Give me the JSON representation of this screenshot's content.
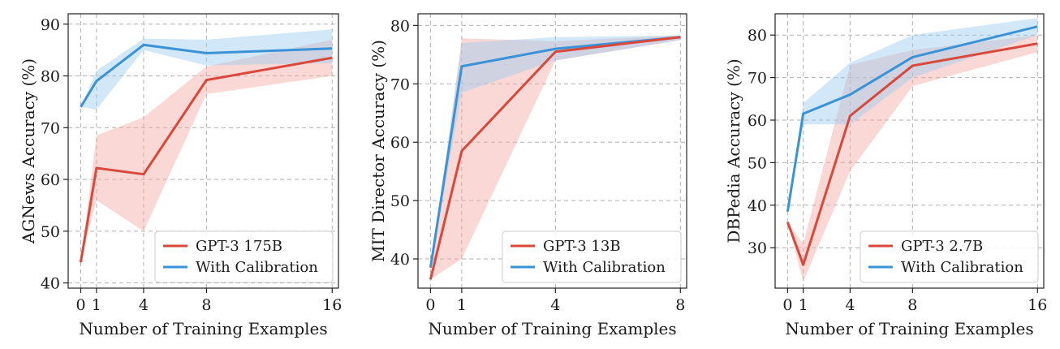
{
  "colors": {
    "baseline": "#d9483b",
    "calibrated": "#3a93d6",
    "baseline_band": "#f5a9a2",
    "calibrated_band": "#9ccbef",
    "grid": "#b0b0b0"
  },
  "chart_data": [
    {
      "type": "line",
      "title": "",
      "xlabel": "Number of Training Examples",
      "ylabel": "AGNews Accuracy (%)",
      "xlim": [
        -0.8,
        16.4
      ],
      "ylim": [
        39,
        92
      ],
      "x_ticks": [
        0,
        1,
        4,
        8,
        16
      ],
      "y_ticks": [
        40,
        50,
        60,
        70,
        80,
        90
      ],
      "grid": true,
      "legend_position": "lower-right",
      "series": [
        {
          "name": "GPT-3 175B",
          "color_key": "baseline",
          "x": [
            0,
            1,
            4,
            8,
            16
          ],
          "y": [
            44.0,
            62.2,
            61.0,
            79.2,
            83.5
          ],
          "lower": [
            44.0,
            56.0,
            50.0,
            76.5,
            80.0
          ],
          "upper": [
            44.0,
            68.5,
            72.0,
            81.8,
            87.0
          ]
        },
        {
          "name": "With Calibration",
          "color_key": "calibrated",
          "x": [
            0,
            1,
            4,
            8,
            16
          ],
          "y": [
            74.0,
            79.0,
            86.0,
            84.4,
            85.3
          ],
          "lower": [
            74.0,
            73.5,
            85.0,
            82.0,
            82.5
          ],
          "upper": [
            74.0,
            81.0,
            87.2,
            87.0,
            89.0
          ]
        }
      ]
    },
    {
      "type": "line",
      "title": "",
      "xlabel": "Number of Training Examples",
      "ylabel": "MIT Director Accuracy (%)",
      "xlim": [
        -0.4,
        8.2
      ],
      "ylim": [
        35,
        82
      ],
      "x_ticks": [
        0,
        1,
        4,
        8
      ],
      "y_ticks": [
        40,
        50,
        60,
        70,
        80
      ],
      "grid": true,
      "legend_position": "lower-right",
      "series": [
        {
          "name": "GPT-3 13B",
          "color_key": "baseline",
          "x": [
            0,
            1,
            4,
            8
          ],
          "y": [
            36.5,
            58.5,
            75.5,
            78.0
          ],
          "lower": [
            36.5,
            40.0,
            74.0,
            77.5
          ],
          "upper": [
            36.5,
            77.8,
            77.3,
            78.3
          ]
        },
        {
          "name": "With Calibration",
          "color_key": "calibrated",
          "x": [
            0,
            1,
            4,
            8
          ],
          "y": [
            38.5,
            73.0,
            76.0,
            78.0
          ],
          "lower": [
            38.5,
            68.5,
            74.0,
            77.5
          ],
          "upper": [
            38.5,
            77.0,
            78.0,
            78.3
          ]
        }
      ]
    },
    {
      "type": "line",
      "title": "",
      "xlabel": "Number of Training Examples",
      "ylabel": "DBPedia Accuracy (%)",
      "xlim": [
        -0.8,
        16.4
      ],
      "ylim": [
        20.5,
        85
      ],
      "x_ticks": [
        0,
        1,
        4,
        8,
        16
      ],
      "y_ticks": [
        30,
        40,
        50,
        60,
        70,
        80
      ],
      "grid": true,
      "legend_position": "lower-right",
      "series": [
        {
          "name": "GPT-3 2.7B",
          "color_key": "baseline",
          "x": [
            0,
            1,
            4,
            8,
            16
          ],
          "y": [
            36.0,
            26.0,
            61.0,
            72.8,
            78.0
          ],
          "lower": [
            36.0,
            22.0,
            48.0,
            68.0,
            76.0
          ],
          "upper": [
            36.0,
            31.0,
            73.0,
            76.5,
            80.0
          ]
        },
        {
          "name": "With Calibration",
          "color_key": "calibrated",
          "x": [
            0,
            1,
            4,
            8,
            16
          ],
          "y": [
            38.5,
            61.5,
            66.0,
            74.8,
            82.0
          ],
          "lower": [
            38.5,
            59.0,
            59.0,
            70.0,
            80.0
          ],
          "upper": [
            38.5,
            64.0,
            73.5,
            80.0,
            84.0
          ]
        }
      ]
    }
  ]
}
